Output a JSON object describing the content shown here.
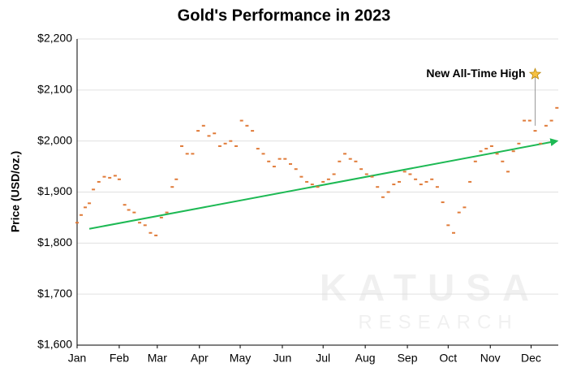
{
  "chart_data": {
    "type": "scatter",
    "title": "Gold's Performance in 2023",
    "ylabel": "Price (USD/oz.)",
    "xlim": [
      0,
      354
    ],
    "xticks": [
      {
        "value": 0,
        "label": "Jan"
      },
      {
        "value": 31,
        "label": "Feb"
      },
      {
        "value": 59,
        "label": "Mar"
      },
      {
        "value": 90,
        "label": "Apr"
      },
      {
        "value": 120,
        "label": "May"
      },
      {
        "value": 151,
        "label": "Jun"
      },
      {
        "value": 181,
        "label": "Jul"
      },
      {
        "value": 212,
        "label": "Aug"
      },
      {
        "value": 243,
        "label": "Sep"
      },
      {
        "value": 273,
        "label": "Oct"
      },
      {
        "value": 304,
        "label": "Nov"
      },
      {
        "value": 334,
        "label": "Dec"
      }
    ],
    "ylim": [
      1600,
      2200
    ],
    "yticks": [
      {
        "value": 1600,
        "label": "$1,600"
      },
      {
        "value": 1700,
        "label": "$1,700"
      },
      {
        "value": 1800,
        "label": "$1,800"
      },
      {
        "value": 1900,
        "label": "$1,900"
      },
      {
        "value": 2000,
        "label": "$2,000"
      },
      {
        "value": 2100,
        "label": "$2,100"
      },
      {
        "value": 2200,
        "label": "$2,200"
      }
    ],
    "grid": true,
    "series": [
      {
        "color": "#e07b39",
        "x": [
          0,
          3,
          6,
          9,
          12,
          16,
          20,
          24,
          28,
          31,
          35,
          38,
          42,
          46,
          50,
          54,
          58,
          62,
          66,
          70,
          73,
          77,
          81,
          85,
          89,
          93,
          97,
          101,
          105,
          109,
          113,
          117,
          121,
          125,
          129,
          133,
          137,
          141,
          145,
          149,
          153,
          157,
          161,
          165,
          169,
          173,
          177,
          181,
          185,
          189,
          193,
          197,
          201,
          205,
          209,
          213,
          217,
          221,
          225,
          229,
          233,
          237,
          241,
          245,
          249,
          253,
          257,
          261,
          265,
          269,
          273,
          277,
          281,
          285,
          289,
          293,
          297,
          301,
          305,
          309,
          313,
          317,
          321,
          325,
          329,
          333,
          337,
          341,
          345,
          349,
          353
        ],
        "values": [
          1840,
          1855,
          1870,
          1878,
          1905,
          1920,
          1930,
          1928,
          1932,
          1925,
          1875,
          1865,
          1860,
          1840,
          1835,
          1820,
          1815,
          1850,
          1860,
          1910,
          1925,
          1990,
          1975,
          1975,
          2020,
          2030,
          2010,
          2015,
          1990,
          1995,
          2000,
          1990,
          2040,
          2030,
          2020,
          1985,
          1975,
          1960,
          1950,
          1965,
          1965,
          1955,
          1945,
          1930,
          1920,
          1915,
          1910,
          1920,
          1925,
          1935,
          1960,
          1975,
          1965,
          1960,
          1945,
          1935,
          1930,
          1910,
          1890,
          1900,
          1915,
          1920,
          1940,
          1935,
          1925,
          1915,
          1920,
          1925,
          1910,
          1880,
          1835,
          1820,
          1860,
          1870,
          1920,
          1960,
          1980,
          1985,
          1990,
          1975,
          1960,
          1940,
          1980,
          1995,
          2040,
          2040,
          2020,
          1995,
          2030,
          2040,
          2065
        ]
      }
    ],
    "trendline": {
      "color": "#1db954",
      "x": [
        9,
        353
      ],
      "values": [
        1828,
        2000
      ]
    },
    "annotation": {
      "text": "New All-Time High",
      "x": 337,
      "value": 2131
    },
    "watermark": [
      "KATUSA",
      "RESEARCH"
    ]
  }
}
